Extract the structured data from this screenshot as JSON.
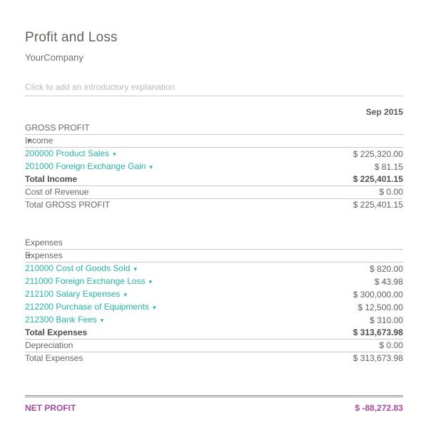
{
  "report": {
    "title": "Profit and Loss",
    "company": "YourCompany",
    "intro_placeholder": "Click to add an introductory explanation",
    "period": "Sep 2015"
  },
  "icons": {
    "section_caret": "▼",
    "link_caret": "▾"
  },
  "colors": {
    "accent_teal": "#26b2a4",
    "net_profit_magenta": "#a2499d",
    "row_border": "#c7c7c7",
    "text_gray": "#666666"
  },
  "rows": [
    {
      "label": "GROSS PROFIT",
      "value": "",
      "indent": 0,
      "border": true
    },
    {
      "label": "Income",
      "value": "",
      "indent": 1,
      "caret": true,
      "border": true,
      "foldable": true
    },
    {
      "label": "200000 Product Sales",
      "value": "$ 225,320.00",
      "indent": 2,
      "link": true
    },
    {
      "label": "201000 Foreign Exchange Gain",
      "value": "$ 81.15",
      "indent": 2,
      "link": true
    },
    {
      "label": "Total Income",
      "value": "$ 225,401.15",
      "indent": 2,
      "bold": true,
      "border": true
    },
    {
      "label": "Cost of Revenue",
      "value": "$ 0.00",
      "indent": 1,
      "border": true
    },
    {
      "label": "Total GROSS PROFIT",
      "value": "$ 225,401.15",
      "indent": 1
    },
    {
      "type": "spacer",
      "height": 36
    },
    {
      "label": "Expenses",
      "value": "",
      "indent": 0,
      "border": true
    },
    {
      "label": "Expenses",
      "value": "",
      "indent": 1,
      "caret": true,
      "border": true,
      "foldable": true
    },
    {
      "label": "210000 Cost of Goods Sold",
      "value": "$ 820.00",
      "indent": 2,
      "link": true
    },
    {
      "label": "211000 Foreign Exchange Loss",
      "value": "$ 43.98",
      "indent": 2,
      "link": true
    },
    {
      "label": "212100 Salary Expenses",
      "value": "$ 300,000.00",
      "indent": 2,
      "link": true
    },
    {
      "label": "212200 Purchase of Equipments",
      "value": "$ 12,500.00",
      "indent": 2,
      "link": true
    },
    {
      "label": "212300 Bank Fees",
      "value": "$ 310.00",
      "indent": 2,
      "link": true
    },
    {
      "label": "Total Expenses",
      "value": "$ 313,673.98",
      "indent": 2,
      "bold": true,
      "border": true
    },
    {
      "label": "Depreciation",
      "value": "$ 0.00",
      "indent": 1,
      "border": true
    },
    {
      "label": "Total Expenses",
      "value": "$ 313,673.98",
      "indent": 1
    },
    {
      "type": "spacer",
      "height": 44
    },
    {
      "label": "NET PROFIT",
      "value": "$ -88,272.83",
      "indent": 0,
      "type": "net"
    }
  ]
}
